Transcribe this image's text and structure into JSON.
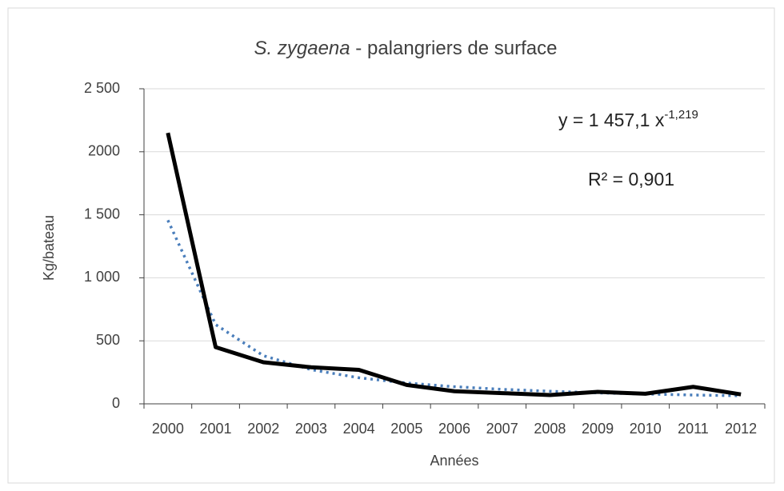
{
  "chart_data": {
    "type": "line",
    "title": {
      "species": "S. zygaena",
      "text": " - palangriers de surface"
    },
    "y_label": "Kg/bateau",
    "x_label": "Années",
    "categories": [
      "2000",
      "2001",
      "2002",
      "2003",
      "2004",
      "2005",
      "2006",
      "2007",
      "2008",
      "2009",
      "2010",
      "2011",
      "2012"
    ],
    "series": [
      {
        "color": "#000000",
        "style": "solid",
        "values": [
          2150,
          450,
          330,
          290,
          270,
          150,
          100,
          85,
          70,
          95,
          80,
          135,
          75
        ]
      },
      {
        "color": "#4a7ebb",
        "style": "dotted",
        "values": [
          1457,
          629,
          382,
          271,
          207,
          165,
          136,
          115,
          100,
          87,
          78,
          70,
          64
        ]
      }
    ],
    "annotations": {
      "equation": "y = 1 457,1 x",
      "exponent": "-1,219",
      "r_squared": "R² = 0,901"
    },
    "ylim": [
      0,
      2500
    ],
    "yticks": [
      0,
      500,
      {
        "value": 1000,
        "label": "1 000"
      },
      {
        "value": 1500,
        "label": "1 500"
      },
      2000,
      {
        "value": 2500,
        "label": "2 500"
      }
    ],
    "grid": true
  }
}
